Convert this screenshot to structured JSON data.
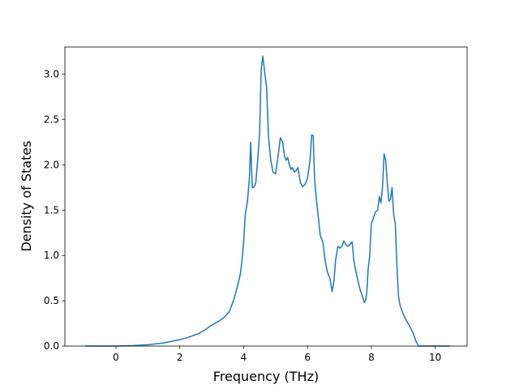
{
  "chart_data": {
    "type": "line",
    "title": "",
    "xlabel": "Frequency (THz)",
    "ylabel": "Density of States",
    "xlim": [
      -1.6,
      11.0
    ],
    "ylim": [
      0.0,
      3.3
    ],
    "xticks": [
      0,
      2,
      4,
      6,
      8,
      10
    ],
    "yticks": [
      0.0,
      0.5,
      1.0,
      1.5,
      2.0,
      2.5,
      3.0
    ],
    "xtick_labels": [
      "0",
      "2",
      "4",
      "6",
      "8",
      "10"
    ],
    "ytick_labels": [
      "0.0",
      "0.5",
      "1.0",
      "1.5",
      "2.0",
      "2.5",
      "3.0"
    ],
    "grid": false,
    "legend": "none",
    "series": [
      {
        "color": "#1f77b4",
        "x": [
          -0.95,
          -0.5,
          0.0,
          0.5,
          1.0,
          1.5,
          2.0,
          2.3,
          2.6,
          2.8,
          2.95,
          3.2,
          3.4,
          3.55,
          3.7,
          3.8,
          3.9,
          3.95,
          4.0,
          4.05,
          4.12,
          4.18,
          4.22,
          4.27,
          4.32,
          4.38,
          4.45,
          4.5,
          4.55,
          4.6,
          4.65,
          4.72,
          4.78,
          4.85,
          4.92,
          5.0,
          5.08,
          5.15,
          5.22,
          5.28,
          5.33,
          5.38,
          5.43,
          5.48,
          5.53,
          5.58,
          5.63,
          5.7,
          5.78,
          5.85,
          5.92,
          6.0,
          6.08,
          6.13,
          6.18,
          6.22,
          6.27,
          6.33,
          6.4,
          6.48,
          6.55,
          6.62,
          6.7,
          6.77,
          6.83,
          6.88,
          6.95,
          7.02,
          7.08,
          7.14,
          7.2,
          7.26,
          7.33,
          7.4,
          7.45,
          7.5,
          7.58,
          7.65,
          7.72,
          7.78,
          7.82,
          7.86,
          7.9,
          7.95,
          8.0,
          8.07,
          8.13,
          8.2,
          8.25,
          8.3,
          8.35,
          8.4,
          8.45,
          8.5,
          8.55,
          8.6,
          8.65,
          8.7,
          8.75,
          8.8,
          8.85,
          8.9,
          8.95,
          9.0,
          9.1,
          9.2,
          9.3,
          9.4,
          9.48,
          9.55,
          9.6,
          9.7,
          10.0,
          10.45
        ],
        "y": [
          0.0,
          0.0,
          0.0,
          0.005,
          0.015,
          0.035,
          0.07,
          0.1,
          0.14,
          0.18,
          0.22,
          0.27,
          0.32,
          0.38,
          0.52,
          0.65,
          0.8,
          0.95,
          1.15,
          1.45,
          1.6,
          1.85,
          2.25,
          1.75,
          1.75,
          1.8,
          2.1,
          2.35,
          3.05,
          3.2,
          3.05,
          2.85,
          2.3,
          2.05,
          1.92,
          1.9,
          2.1,
          2.3,
          2.25,
          2.1,
          2.05,
          2.08,
          2.0,
          1.95,
          1.97,
          1.92,
          1.93,
          1.97,
          1.8,
          1.76,
          1.78,
          1.85,
          2.05,
          2.33,
          2.32,
          1.85,
          1.65,
          1.45,
          1.22,
          1.15,
          0.95,
          0.82,
          0.75,
          0.6,
          0.72,
          0.95,
          1.1,
          1.08,
          1.1,
          1.16,
          1.12,
          1.1,
          1.12,
          1.15,
          0.95,
          0.85,
          0.72,
          0.62,
          0.55,
          0.48,
          0.5,
          0.6,
          0.85,
          1.0,
          1.35,
          1.42,
          1.48,
          1.5,
          1.65,
          1.58,
          1.75,
          2.12,
          2.05,
          1.8,
          1.6,
          1.62,
          1.75,
          1.45,
          1.35,
          0.9,
          0.55,
          0.45,
          0.4,
          0.35,
          0.28,
          0.22,
          0.15,
          0.05,
          0.0,
          0.0,
          0.0,
          0.0,
          0.0,
          0.0
        ]
      }
    ]
  }
}
